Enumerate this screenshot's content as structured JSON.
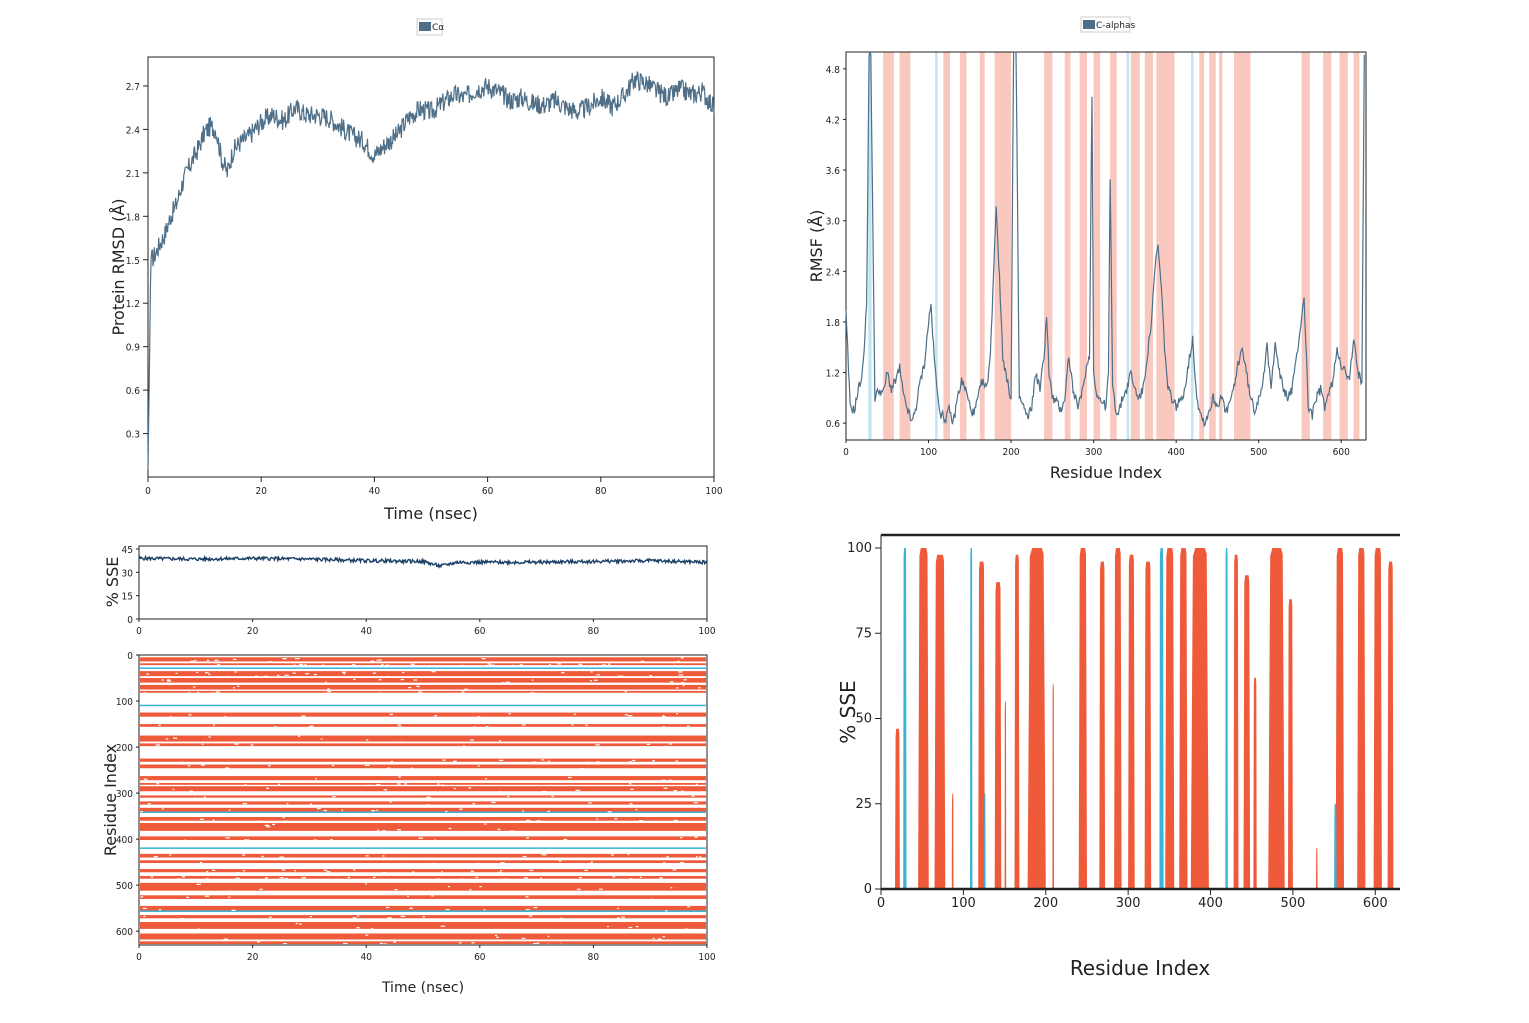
{
  "colors": {
    "rmsd_line": "#4e6f87",
    "sse_line": "#1b3f66",
    "helix": "#ef5a3a",
    "strand": "#3bb3d6",
    "helix_band": "#f9c9c0",
    "strand_band": "#bfe6f3",
    "axis": "#222222"
  },
  "chart_data": [
    {
      "id": "rmsd",
      "type": "line",
      "title": "",
      "xlabel": "Time (nsec)",
      "ylabel": "Protein RMSD (Å)",
      "xlim": [
        0,
        100
      ],
      "ylim": [
        0,
        2.9
      ],
      "xticks": [
        0,
        20,
        40,
        60,
        80,
        100
      ],
      "yticks": [
        0.3,
        0.6,
        0.9,
        1.2,
        1.5,
        1.8,
        2.1,
        2.4,
        2.7
      ],
      "legend": {
        "position": "top-center",
        "entries": [
          "Cα"
        ]
      },
      "series": [
        {
          "name": "Cα",
          "x": [
            0,
            0.5,
            1,
            2,
            3,
            4,
            5,
            6,
            7,
            8,
            9,
            10,
            11,
            12,
            13,
            14,
            15,
            16,
            18,
            20,
            22,
            24,
            26,
            28,
            30,
            32,
            34,
            36,
            38,
            40,
            42,
            44,
            46,
            48,
            50,
            52,
            54,
            56,
            58,
            60,
            62,
            64,
            66,
            68,
            70,
            72,
            74,
            76,
            78,
            80,
            82,
            84,
            86,
            88,
            90,
            92,
            94,
            96,
            98,
            100
          ],
          "y": [
            0.05,
            1.5,
            1.52,
            1.6,
            1.68,
            1.8,
            1.88,
            2.02,
            2.12,
            2.2,
            2.28,
            2.38,
            2.42,
            2.4,
            2.2,
            2.1,
            2.25,
            2.3,
            2.36,
            2.45,
            2.5,
            2.46,
            2.55,
            2.5,
            2.5,
            2.48,
            2.42,
            2.36,
            2.32,
            2.22,
            2.3,
            2.36,
            2.48,
            2.54,
            2.52,
            2.58,
            2.64,
            2.62,
            2.68,
            2.7,
            2.66,
            2.6,
            2.62,
            2.58,
            2.57,
            2.6,
            2.55,
            2.52,
            2.56,
            2.62,
            2.56,
            2.63,
            2.75,
            2.72,
            2.66,
            2.62,
            2.68,
            2.64,
            2.66,
            2.55
          ]
        }
      ]
    },
    {
      "id": "rmsf",
      "type": "line",
      "title": "",
      "xlabel": "Residue Index",
      "ylabel": "RMSF (Å)",
      "xlim": [
        0,
        630
      ],
      "ylim": [
        0.4,
        5.0
      ],
      "xticks": [
        0,
        100,
        200,
        300,
        400,
        500,
        600
      ],
      "yticks": [
        0.6,
        1.2,
        1.8,
        2.4,
        3.0,
        3.6,
        4.2,
        4.8
      ],
      "legend": {
        "position": "top-center",
        "entries": [
          "C-alphas"
        ]
      },
      "helix_regions": [
        [
          45,
          58
        ],
        [
          65,
          78
        ],
        [
          118,
          126
        ],
        [
          138,
          146
        ],
        [
          162,
          168
        ],
        [
          180,
          200
        ],
        [
          240,
          250
        ],
        [
          265,
          272
        ],
        [
          283,
          292
        ],
        [
          300,
          308
        ],
        [
          320,
          328
        ],
        [
          345,
          356
        ],
        [
          362,
          372
        ],
        [
          376,
          398
        ],
        [
          428,
          434
        ],
        [
          440,
          448
        ],
        [
          452,
          456
        ],
        [
          470,
          490
        ],
        [
          552,
          562
        ],
        [
          578,
          588
        ],
        [
          598,
          608
        ],
        [
          615,
          622
        ]
      ],
      "strand_regions": [
        [
          27,
          31
        ],
        [
          108,
          111
        ],
        [
          340,
          343
        ],
        [
          418,
          421
        ]
      ],
      "series": [
        {
          "name": "C-alphas",
          "x": [
            0,
            5,
            10,
            15,
            20,
            25,
            28,
            30,
            35,
            40,
            45,
            50,
            55,
            60,
            65,
            70,
            75,
            80,
            85,
            90,
            95,
            100,
            103,
            106,
            110,
            115,
            120,
            125,
            130,
            135,
            140,
            145,
            150,
            155,
            160,
            165,
            170,
            175,
            178,
            182,
            186,
            190,
            195,
            200,
            203,
            206,
            210,
            215,
            220,
            225,
            230,
            235,
            240,
            243,
            246,
            250,
            255,
            260,
            265,
            270,
            275,
            280,
            285,
            290,
            295,
            298,
            300,
            303,
            306,
            310,
            315,
            318,
            320,
            323,
            326,
            330,
            335,
            340,
            345,
            350,
            355,
            360,
            365,
            370,
            375,
            378,
            382,
            386,
            390,
            395,
            400,
            405,
            410,
            415,
            420,
            425,
            430,
            435,
            440,
            445,
            450,
            455,
            460,
            465,
            470,
            475,
            480,
            485,
            490,
            495,
            500,
            505,
            510,
            515,
            520,
            525,
            530,
            535,
            540,
            545,
            550,
            555,
            560,
            565,
            570,
            575,
            580,
            585,
            590,
            595,
            600,
            605,
            610,
            615,
            620,
            625,
            628
          ],
          "y": [
            1.9,
            0.8,
            0.75,
            1.0,
            1.2,
            2.0,
            5.0,
            5.0,
            0.9,
            1.0,
            0.95,
            1.2,
            1.0,
            1.1,
            1.25,
            0.9,
            0.75,
            0.6,
            0.8,
            1.1,
            1.3,
            1.8,
            2.0,
            1.5,
            1.0,
            0.7,
            0.65,
            0.75,
            0.6,
            0.9,
            1.1,
            1.0,
            0.8,
            0.7,
            0.9,
            1.1,
            1.0,
            1.4,
            2.2,
            3.2,
            2.3,
            1.4,
            1.1,
            0.9,
            5.0,
            5.0,
            0.9,
            0.8,
            0.65,
            0.8,
            1.2,
            1.0,
            1.4,
            1.9,
            1.2,
            0.9,
            0.85,
            0.75,
            0.9,
            1.4,
            1.0,
            0.8,
            0.9,
            1.2,
            1.4,
            4.5,
            1.2,
            1.0,
            0.9,
            0.85,
            0.8,
            1.2,
            3.5,
            1.1,
            0.8,
            0.7,
            0.9,
            1.0,
            1.2,
            1.0,
            0.9,
            1.0,
            1.4,
            1.8,
            2.5,
            2.7,
            2.2,
            1.5,
            1.0,
            0.9,
            0.8,
            0.85,
            1.0,
            1.3,
            1.6,
            0.9,
            0.7,
            0.6,
            0.75,
            0.9,
            0.8,
            0.95,
            0.7,
            0.85,
            1.0,
            1.3,
            1.5,
            1.2,
            0.9,
            0.75,
            0.9,
            1.1,
            1.5,
            1.0,
            1.6,
            1.2,
            1.0,
            0.9,
            1.0,
            1.3,
            1.7,
            2.1,
            0.8,
            0.7,
            0.9,
            1.0,
            0.8,
            0.95,
            1.1,
            1.5,
            1.3,
            1.2,
            1.1,
            1.6,
            1.2,
            1.1,
            5.0
          ]
        }
      ]
    },
    {
      "id": "sse_timeline",
      "type": "line",
      "title": "",
      "xlabel": "",
      "ylabel": "% SSE",
      "xlim": [
        0,
        100
      ],
      "ylim": [
        0,
        45
      ],
      "xticks": [
        0,
        20,
        40,
        60,
        80,
        100
      ],
      "yticks": [
        0,
        15,
        30,
        45
      ],
      "series": [
        {
          "x": [
            0,
            10,
            20,
            30,
            40,
            50,
            53,
            56,
            60,
            70,
            80,
            90,
            100
          ],
          "y": [
            39,
            38.5,
            39,
            38.5,
            37.5,
            37,
            34,
            36.5,
            36.5,
            36.5,
            37,
            37.5,
            36.5
          ]
        }
      ]
    },
    {
      "id": "sse_residue_timeline",
      "type": "heatmap",
      "title": "",
      "xlabel": "Time (nsec)",
      "ylabel": "Residue Index",
      "xlim": [
        0,
        100
      ],
      "ylim": [
        0,
        630
      ],
      "xticks": [
        0,
        20,
        40,
        60,
        80,
        100
      ],
      "yticks": [
        0,
        100,
        200,
        300,
        400,
        500,
        600
      ],
      "helix_bands": [
        [
          5,
          14
        ],
        [
          18,
          22
        ],
        [
          35,
          46
        ],
        [
          50,
          60
        ],
        [
          65,
          75
        ],
        [
          78,
          82
        ],
        [
          125,
          134
        ],
        [
          150,
          156
        ],
        [
          175,
          188
        ],
        [
          192,
          198
        ],
        [
          225,
          232
        ],
        [
          238,
          246
        ],
        [
          263,
          272
        ],
        [
          278,
          282
        ],
        [
          285,
          296
        ],
        [
          305,
          310
        ],
        [
          318,
          325
        ],
        [
          332,
          340
        ],
        [
          352,
          360
        ],
        [
          365,
          382
        ],
        [
          394,
          402
        ],
        [
          432,
          440
        ],
        [
          446,
          452
        ],
        [
          465,
          472
        ],
        [
          480,
          486
        ],
        [
          495,
          512
        ],
        [
          522,
          530
        ],
        [
          545,
          555
        ],
        [
          565,
          572
        ],
        [
          580,
          595
        ],
        [
          605,
          618
        ],
        [
          622,
          628
        ]
      ],
      "strand_bands": [
        [
          27,
          30
        ],
        [
          108,
          111
        ],
        [
          340,
          343
        ],
        [
          418,
          421
        ],
        [
          555,
          558
        ]
      ]
    },
    {
      "id": "sse_residue",
      "type": "area",
      "title": "",
      "xlabel": "Residue Index",
      "ylabel": "% SSE",
      "xlim": [
        0,
        630
      ],
      "ylim": [
        0,
        100
      ],
      "xticks": [
        0,
        100,
        200,
        300,
        400,
        500,
        600
      ],
      "yticks": [
        0,
        25,
        50,
        75,
        100
      ],
      "helix_regions": [
        [
          17,
          23,
          47
        ],
        [
          45,
          58,
          100
        ],
        [
          65,
          78,
          98
        ],
        [
          86,
          88,
          28
        ],
        [
          118,
          126,
          96
        ],
        [
          138,
          146,
          90
        ],
        [
          150,
          152,
          55
        ],
        [
          162,
          168,
          98
        ],
        [
          178,
          200,
          100
        ],
        [
          208,
          210,
          60
        ],
        [
          240,
          250,
          100
        ],
        [
          265,
          272,
          96
        ],
        [
          283,
          292,
          100
        ],
        [
          300,
          308,
          98
        ],
        [
          320,
          328,
          96
        ],
        [
          345,
          356,
          100
        ],
        [
          362,
          372,
          100
        ],
        [
          376,
          398,
          100
        ],
        [
          428,
          434,
          98
        ],
        [
          440,
          448,
          92
        ],
        [
          452,
          456,
          62
        ],
        [
          470,
          490,
          100
        ],
        [
          494,
          500,
          85
        ],
        [
          528,
          530,
          12
        ],
        [
          552,
          562,
          100
        ],
        [
          578,
          588,
          100
        ],
        [
          598,
          608,
          100
        ],
        [
          615,
          622,
          96
        ]
      ],
      "strand_regions": [
        [
          27,
          31,
          100
        ],
        [
          108,
          111,
          100
        ],
        [
          125,
          127,
          28
        ],
        [
          338,
          343,
          100
        ],
        [
          418,
          421,
          100
        ],
        [
          550,
          553,
          25
        ]
      ]
    }
  ]
}
